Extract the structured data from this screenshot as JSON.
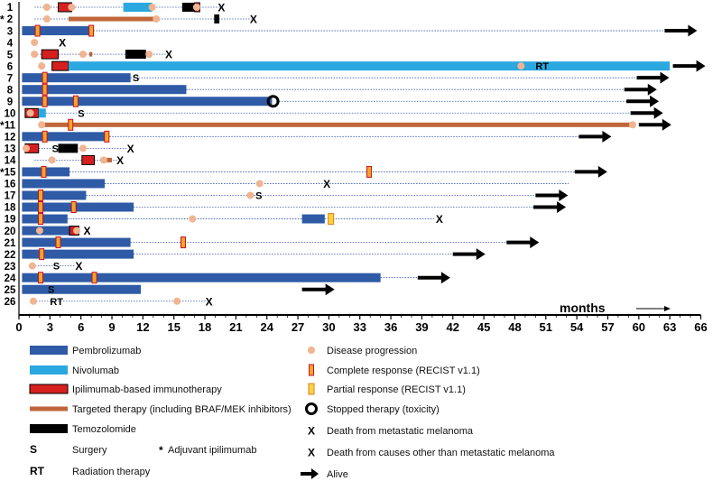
{
  "chart_data": {
    "type": "swimmer",
    "x_label": "months",
    "x_ticks": [
      0,
      3,
      6,
      9,
      12,
      15,
      18,
      21,
      24,
      27,
      30,
      33,
      36,
      39,
      42,
      45,
      48,
      51,
      54,
      57,
      60,
      63,
      66
    ],
    "xlim": [
      0,
      66
    ],
    "colors": {
      "pembrolizumab": "#2E5AA6",
      "nivolumab": "#2BA8E0",
      "ipilimumab": "#D62020",
      "targeted": "#C0663A",
      "temozolomide": "#000000",
      "progression": "#F0B490",
      "cr_fill": "#F5A623",
      "cr_stroke": "#C8102E",
      "axis": "#000000",
      "dotted": "#3355AA"
    },
    "patients": [
      {
        "id": "1",
        "adjuvant": false,
        "bars": [
          {
            "t": "ipilimumab",
            "s": 3.8,
            "e": 5.1
          },
          {
            "t": "nivolumab",
            "s": 10.1,
            "e": 12.9
          },
          {
            "t": "temozolomide",
            "s": 15.8,
            "e": 17.0
          },
          {
            "t": "ipilimumab",
            "s": 17.0,
            "e": 17.5
          }
        ],
        "prog": [
          2.7,
          5.1,
          12.9,
          17.2
        ],
        "dotted": [
          [
            1.5,
            19.5
          ]
        ],
        "outcome": {
          "type": "death",
          "x": 19.6
        }
      },
      {
        "id": "2",
        "adjuvant": true,
        "bars": [
          {
            "t": "targeted",
            "s": 4.8,
            "e": 13.3
          },
          {
            "t": "temozolomide",
            "s": 18.9,
            "e": 19.4
          }
        ],
        "prog": [
          2.7,
          13.3
        ],
        "dotted": [
          [
            1.5,
            22.5
          ]
        ],
        "outcome": {
          "type": "death",
          "x": 22.7
        }
      },
      {
        "id": "3",
        "adjuvant": false,
        "bars": [
          {
            "t": "pembrolizumab",
            "s": 0.3,
            "e": 7.2
          }
        ],
        "cr": [
          1.8,
          7.0
        ],
        "dotted": [
          [
            7.2,
            62.5
          ]
        ],
        "outcome": {
          "type": "arrow",
          "x": 62.5
        }
      },
      {
        "id": "4",
        "adjuvant": false,
        "bars": [],
        "prog": [
          1.5
        ],
        "outcome": {
          "type": "death",
          "x": 4.2
        }
      },
      {
        "id": "5",
        "adjuvant": false,
        "bars": [
          {
            "t": "ipilimumab",
            "s": 2.2,
            "e": 3.8
          },
          {
            "t": "targeted",
            "s": 6.8,
            "e": 7.1
          },
          {
            "t": "temozolomide",
            "s": 10.3,
            "e": 12.3
          }
        ],
        "prog": [
          1.5,
          6.2,
          12.6
        ],
        "dotted": [
          [
            1.5,
            14.3
          ]
        ],
        "outcome": {
          "type": "death",
          "x": 14.5
        }
      },
      {
        "id": "6",
        "adjuvant": false,
        "bars": [
          {
            "t": "ipilimumab",
            "s": 3.2,
            "e": 4.8
          },
          {
            "t": "nivolumab",
            "s": 4.8,
            "e": 63.0
          }
        ],
        "prog": [
          2.2,
          48.6
        ],
        "labels": [
          {
            "text": "RT",
            "x": 50.0
          }
        ],
        "outcome": {
          "type": "arrow",
          "x": 63.3
        }
      },
      {
        "id": "7",
        "adjuvant": false,
        "bars": [
          {
            "t": "pembrolizumab",
            "s": 0.3,
            "e": 10.8
          }
        ],
        "cr": [
          2.5
        ],
        "labels": [
          {
            "text": "S",
            "x": 11.0
          }
        ],
        "dotted": [
          [
            10.8,
            59.8
          ]
        ],
        "outcome": {
          "type": "arrow",
          "x": 59.8
        }
      },
      {
        "id": "8",
        "adjuvant": false,
        "bars": [
          {
            "t": "pembrolizumab",
            "s": 0.3,
            "e": 16.2
          }
        ],
        "cr": [
          2.5
        ],
        "dotted": [
          [
            16.2,
            58.6
          ]
        ],
        "outcome": {
          "type": "arrow",
          "x": 58.6
        }
      },
      {
        "id": "9",
        "adjuvant": false,
        "bars": [
          {
            "t": "pembrolizumab",
            "s": 0.3,
            "e": 24.5
          }
        ],
        "cr": [
          2.5,
          5.5
        ],
        "stopped": [
          24.6
        ],
        "dotted": [
          [
            24.9,
            58.8
          ]
        ],
        "outcome": {
          "type": "arrow",
          "x": 58.8
        }
      },
      {
        "id": "10",
        "adjuvant": false,
        "bars": [
          {
            "t": "ipilimumab",
            "s": 0.6,
            "e": 1.9
          },
          {
            "t": "nivolumab",
            "s": 1.9,
            "e": 2.6
          }
        ],
        "prog": [
          1.1
        ],
        "labels": [
          {
            "text": "S",
            "x": 5.7
          }
        ],
        "dotted": [
          [
            2.6,
            59.2
          ]
        ],
        "outcome": {
          "type": "arrow",
          "x": 59.2
        }
      },
      {
        "id": "11",
        "adjuvant": true,
        "bars": [
          {
            "t": "targeted",
            "s": 2.2,
            "e": 59.4
          }
        ],
        "prog": [
          2.2,
          59.4
        ],
        "cr": [
          5.0
        ],
        "outcome": {
          "type": "arrow",
          "x": 60.0
        }
      },
      {
        "id": "12",
        "adjuvant": false,
        "bars": [
          {
            "t": "pembrolizumab",
            "s": 0.3,
            "e": 8.5
          }
        ],
        "cr": [
          2.5,
          8.5
        ],
        "dotted": [
          [
            8.5,
            54.2
          ]
        ],
        "outcome": {
          "type": "arrow",
          "x": 54.2
        }
      },
      {
        "id": "13",
        "adjuvant": false,
        "bars": [
          {
            "t": "ipilimumab",
            "s": 0.6,
            "e": 1.9
          },
          {
            "t": "temozolomide",
            "s": 3.8,
            "e": 5.7
          }
        ],
        "prog": [
          0.7,
          6.2
        ],
        "labels": [
          {
            "text": "S",
            "x": 3.2
          }
        ],
        "dotted": [
          [
            1.9,
            10.5
          ]
        ],
        "outcome": {
          "type": "death",
          "x": 10.8
        }
      },
      {
        "id": "14",
        "adjuvant": false,
        "bars": [
          {
            "t": "ipilimumab",
            "s": 6.1,
            "e": 7.3
          },
          {
            "t": "targeted",
            "s": 8.0,
            "e": 9.0
          }
        ],
        "prog": [
          3.2,
          8.2
        ],
        "dotted": [
          [
            1.5,
            9.5
          ]
        ],
        "outcome": {
          "type": "death",
          "x": 9.8
        }
      },
      {
        "id": "15",
        "adjuvant": true,
        "bars": [
          {
            "t": "pembrolizumab",
            "s": 0.3,
            "e": 4.9
          }
        ],
        "cr": [
          2.4,
          33.9
        ],
        "dotted": [
          [
            4.9,
            53.8
          ]
        ],
        "outcome": {
          "type": "arrow",
          "x": 53.8
        }
      },
      {
        "id": "16",
        "adjuvant": false,
        "bars": [
          {
            "t": "pembrolizumab",
            "s": 0.3,
            "e": 8.3
          }
        ],
        "prog": [
          23.3
        ],
        "dotted": [
          [
            8.3,
            53.2
          ]
        ],
        "outcome": {
          "type": "other_death",
          "x": 29.8
        }
      },
      {
        "id": "17",
        "adjuvant": false,
        "bars": [
          {
            "t": "pembrolizumab",
            "s": 0.3,
            "e": 6.5
          }
        ],
        "prog": [
          22.4
        ],
        "cr": [
          2.1
        ],
        "labels": [
          {
            "text": "S",
            "x": 22.9
          }
        ],
        "dotted": [
          [
            6.5,
            50.0
          ]
        ],
        "outcome": {
          "type": "arrow",
          "x": 50.0
        }
      },
      {
        "id": "18",
        "adjuvant": false,
        "bars": [
          {
            "t": "pembrolizumab",
            "s": 0.3,
            "e": 11.1
          }
        ],
        "cr": [
          2.1,
          5.3
        ],
        "dotted": [
          [
            11.1,
            49.8
          ]
        ],
        "outcome": {
          "type": "arrow",
          "x": 49.8
        }
      },
      {
        "id": "19",
        "adjuvant": false,
        "bars": [
          {
            "t": "pembrolizumab",
            "s": 0.3,
            "e": 4.7
          },
          {
            "t": "pembrolizumab",
            "s": 27.4,
            "e": 29.6
          }
        ],
        "prog": [
          16.8
        ],
        "cr": [
          2.1
        ],
        "pr": [
          30.2
        ],
        "dotted": [
          [
            4.7,
            40.2
          ]
        ],
        "outcome": {
          "type": "death",
          "x": 40.7
        }
      },
      {
        "id": "20",
        "adjuvant": false,
        "bars": [
          {
            "t": "pembrolizumab",
            "s": 0.3,
            "e": 4.9
          },
          {
            "t": "ipilimumab",
            "s": 4.9,
            "e": 5.8
          }
        ],
        "prog": [
          2.0,
          5.6
        ],
        "outcome": {
          "type": "death",
          "x": 6.6
        }
      },
      {
        "id": "21",
        "adjuvant": false,
        "bars": [
          {
            "t": "pembrolizumab",
            "s": 0.3,
            "e": 10.8
          }
        ],
        "cr": [
          3.8,
          15.9
        ],
        "dotted": [
          [
            10.8,
            47.2
          ]
        ],
        "outcome": {
          "type": "arrow",
          "x": 47.2
        }
      },
      {
        "id": "22",
        "adjuvant": false,
        "bars": [
          {
            "t": "pembrolizumab",
            "s": 0.3,
            "e": 11.1
          }
        ],
        "cr": [
          2.2
        ],
        "dotted": [
          [
            11.1,
            42.0
          ]
        ],
        "outcome": {
          "type": "arrow",
          "x": 42.0
        }
      },
      {
        "id": "23",
        "adjuvant": false,
        "bars": [],
        "prog": [
          1.3
        ],
        "labels": [
          {
            "text": "S",
            "x": 3.3
          }
        ],
        "dotted": [
          [
            1.3,
            5.5
          ]
        ],
        "outcome": {
          "type": "death",
          "x": 5.8
        }
      },
      {
        "id": "24",
        "adjuvant": false,
        "bars": [
          {
            "t": "pembrolizumab",
            "s": 0.3,
            "e": 35.0
          }
        ],
        "cr": [
          2.1,
          7.3
        ],
        "dotted": [
          [
            35.0,
            38.6
          ]
        ],
        "outcome": {
          "type": "arrow",
          "x": 38.6
        }
      },
      {
        "id": "25",
        "adjuvant": false,
        "bars": [
          {
            "t": "pembrolizumab",
            "s": 0.3,
            "e": 11.8
          }
        ],
        "labels": [
          {
            "text": "S",
            "x": 2.8
          }
        ],
        "outcome": {
          "type": "arrow",
          "x": 27.4
        }
      },
      {
        "id": "26",
        "adjuvant": false,
        "bars": [],
        "prog": [
          1.4,
          15.3
        ],
        "labels": [
          {
            "text": "RT",
            "x": 3.0
          }
        ],
        "dotted": [
          [
            1.4,
            18.2
          ]
        ],
        "outcome": {
          "type": "death",
          "x": 18.4
        }
      }
    ],
    "legend": {
      "left": [
        {
          "key": "pembrolizumab",
          "label": "Pembrolizumab"
        },
        {
          "key": "nivolumab",
          "label": "Nivolumab"
        },
        {
          "key": "ipilimumab",
          "label": "Ipilimumab-based immunotherapy"
        },
        {
          "key": "targeted",
          "label": "Targeted therapy (including BRAF/MEK inhibitors)"
        },
        {
          "key": "temozolomide",
          "label": "Temozolomide"
        }
      ],
      "surgery": {
        "symbol": "S",
        "label": "Surgery"
      },
      "adjuvant": {
        "symbol": "*",
        "label": "Adjuvant ipilimumab"
      },
      "radiation": {
        "symbol": "RT",
        "label": "Radiation therapy"
      },
      "right": [
        {
          "key": "progression",
          "label": "Disease progression"
        },
        {
          "key": "cr",
          "label": "Complete response (RECIST v1.1)"
        },
        {
          "key": "pr",
          "label": "Partial response (RECIST v1.1)"
        },
        {
          "key": "stopped",
          "label": "Stopped therapy (toxicity)"
        },
        {
          "key": "death",
          "label": "Death from metastatic melanoma"
        },
        {
          "key": "other_death",
          "label": "Death from causes other than metastatic melanoma"
        },
        {
          "key": "arrow",
          "label": "Alive"
        }
      ]
    }
  }
}
